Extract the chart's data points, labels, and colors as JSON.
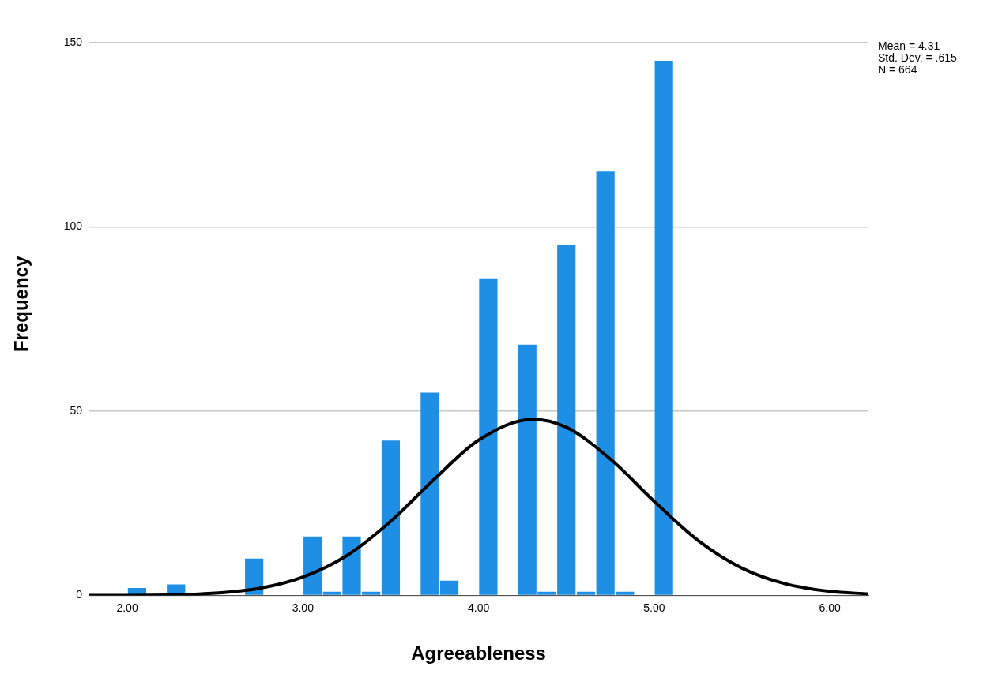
{
  "chart_data": {
    "type": "histogram",
    "xlabel": "Agreeableness",
    "ylabel": "Frequency",
    "bins": [
      2.0,
      2.111,
      2.222,
      2.333,
      2.444,
      2.556,
      2.667,
      2.778,
      2.889,
      3.0,
      3.111,
      3.222,
      3.333,
      3.444,
      3.556,
      3.667,
      3.778,
      3.889,
      4.0,
      4.111,
      4.222,
      4.333,
      4.444,
      4.556,
      4.667,
      4.778,
      4.889,
      5.0,
      5.111
    ],
    "values": [
      2,
      0,
      3,
      0,
      0,
      0,
      10,
      0,
      0,
      16,
      1,
      16,
      1,
      42,
      0,
      55,
      4,
      0,
      86,
      0,
      68,
      1,
      95,
      1,
      115,
      1,
      0,
      145
    ],
    "color": "#1f8fe5",
    "series": [
      {
        "type": "line",
        "color": "#000000",
        "marker": "none",
        "x": [
          1.78,
          2.0,
          2.5,
          2.75,
          3.0,
          3.25,
          3.5,
          3.75,
          4.0,
          4.31,
          4.5,
          4.75,
          5.0,
          5.25,
          5.5,
          5.75,
          6.0,
          6.22
        ],
        "values": [
          0,
          0,
          0.6,
          1.9,
          5,
          10.8,
          20.1,
          31.6,
          42.1,
          47.8,
          45.6,
          37,
          25.5,
          14.9,
          7.4,
          3.1,
          1.1,
          0.4
        ]
      }
    ],
    "xlim": [
      1.78,
      6.22
    ],
    "xticks": [
      {
        "value": 2,
        "label": "2.00"
      },
      {
        "value": 3,
        "label": "3.00"
      },
      {
        "value": 4,
        "label": "4.00"
      },
      {
        "value": 5,
        "label": "5.00"
      },
      {
        "value": 6,
        "label": "6.00"
      }
    ],
    "ylim": [
      0,
      158
    ],
    "yticks": [
      0,
      50,
      100,
      150
    ],
    "grid": "y",
    "legend": false,
    "annotations": [
      "Mean = 4.31",
      "Std. Dev. = .615",
      "N = 664"
    ]
  }
}
